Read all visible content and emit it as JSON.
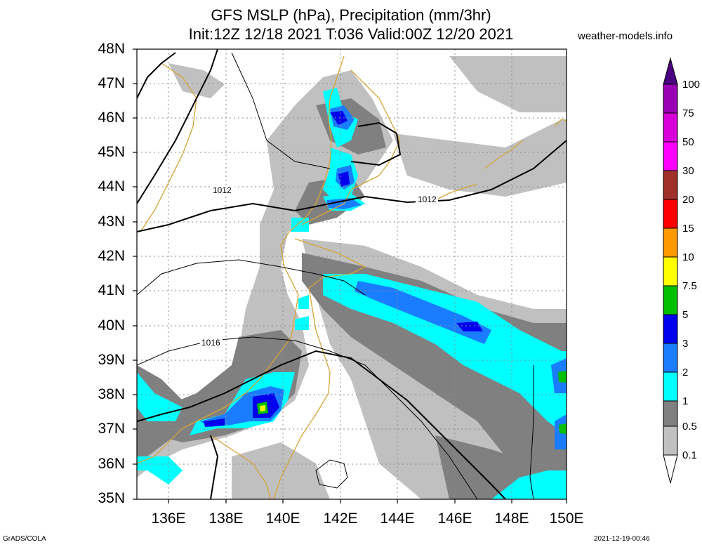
{
  "header": {
    "title_line1": "GFS MSLP (hPa), Precipitation (mm/3hr)",
    "title_line2": "Init:12Z 12/18 2021 T:036 Valid:00Z 12/20 2021",
    "site": "weather-models.info"
  },
  "footer": {
    "left": "GrADS/COLA",
    "right": "2021-12-19-00:46"
  },
  "map": {
    "lat_labels": [
      "48N",
      "47N",
      "46N",
      "45N",
      "44N",
      "43N",
      "42N",
      "41N",
      "40N",
      "39N",
      "38N",
      "37N",
      "36N",
      "35N"
    ],
    "lon_labels": [
      "136E",
      "138E",
      "140E",
      "142E",
      "144E",
      "146E",
      "148E",
      "150E"
    ],
    "isobar_labels": [
      "1012",
      "1012",
      "1016"
    ],
    "colors": {
      "coastline": "#d4a53a",
      "isobar": "#000000",
      "border": "#000000",
      "gridline": "#8c8c8c"
    }
  },
  "colorbar": {
    "labels": [
      "100",
      "75",
      "50",
      "30",
      "20",
      "15",
      "10",
      "7.5",
      "5",
      "3",
      "2",
      "1",
      "0.5",
      "0.1"
    ],
    "colors": [
      "#4a0080",
      "#9a00b4",
      "#d800d8",
      "#ff00ff",
      "#a0302a",
      "#ff0000",
      "#ff9900",
      "#ffff00",
      "#00c000",
      "#0000ee",
      "#1a7cff",
      "#00ffff",
      "#808080",
      "#c0c0c0",
      "#ffffff"
    ]
  }
}
